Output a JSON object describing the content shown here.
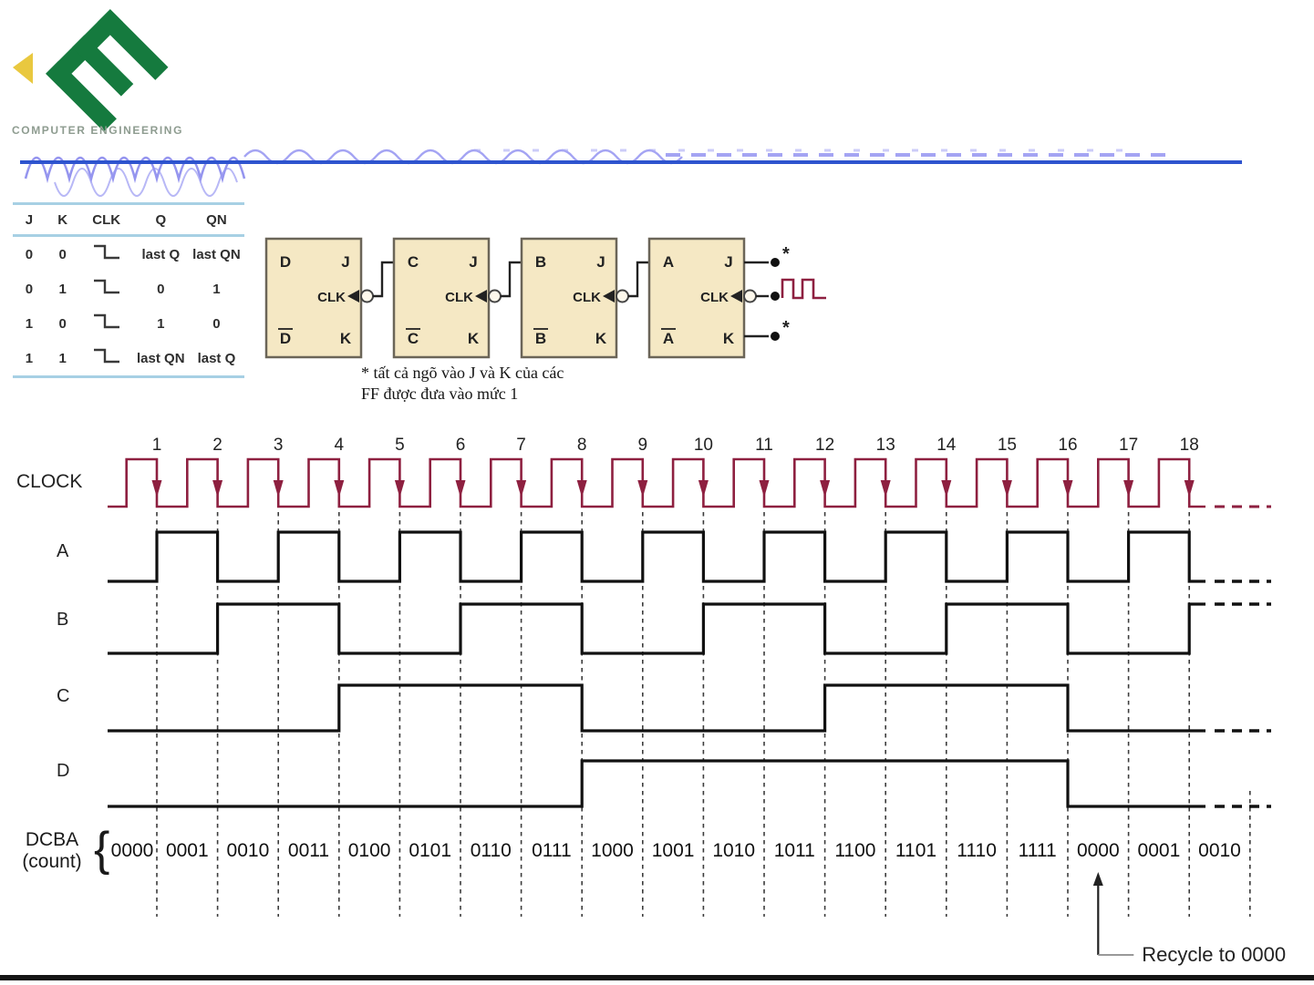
{
  "page": {
    "bg": "#ffffff",
    "footer_bar_color": "#151515",
    "rule_color": "#2e54ce"
  },
  "logo": {
    "org_text": "COMPUTER ENGINEERING",
    "green": "#157a3e",
    "yellow": "#e9c83f"
  },
  "truth_table": {
    "headers": [
      "J",
      "K",
      "CLK",
      "Q",
      "QN"
    ],
    "rows": [
      {
        "j": "0",
        "k": "0",
        "clk": "falling-edge",
        "q": "last Q",
        "qn": "last QN"
      },
      {
        "j": "0",
        "k": "1",
        "clk": "falling-edge",
        "q": "0",
        "qn": "1"
      },
      {
        "j": "1",
        "k": "0",
        "clk": "falling-edge",
        "q": "1",
        "qn": "0"
      },
      {
        "j": "1",
        "k": "1",
        "clk": "falling-edge",
        "q": "last QN",
        "qn": "last Q"
      }
    ],
    "rule_color": "#a7d0e4"
  },
  "circuit": {
    "block_fill": "#f5e8c4",
    "block_stroke": "#6b6558",
    "flip_flops": [
      {
        "q": "D",
        "qbar": "D",
        "j": "J",
        "k": "K",
        "clk": "CLK"
      },
      {
        "q": "C",
        "qbar": "C",
        "j": "J",
        "k": "K",
        "clk": "CLK"
      },
      {
        "q": "B",
        "qbar": "B",
        "j": "J",
        "k": "K",
        "clk": "CLK"
      },
      {
        "q": "A",
        "qbar": "A",
        "j": "J",
        "k": "K",
        "clk": "CLK"
      }
    ],
    "star": "*",
    "pulse_color": "#8e2040",
    "note_line1": "* tất cả ngõ vào J và K của các",
    "note_line2": "FF được đưa vào mức 1"
  },
  "timing": {
    "clock_label": "CLOCK",
    "clock_color": "#8e2040",
    "signal_color": "#111111",
    "edge_numbers": [
      "1",
      "2",
      "3",
      "4",
      "5",
      "6",
      "7",
      "8",
      "9",
      "10",
      "11",
      "12",
      "13",
      "14",
      "15",
      "16",
      "17",
      "18"
    ],
    "signals": [
      {
        "label": "A",
        "toggle_edges": [
          1,
          2,
          3,
          4,
          5,
          6,
          7,
          8,
          9,
          10,
          11,
          12,
          13,
          14,
          15,
          16,
          17,
          18
        ]
      },
      {
        "label": "B",
        "toggle_edges": [
          2,
          4,
          6,
          8,
          10,
          12,
          14,
          16,
          18
        ]
      },
      {
        "label": "C",
        "toggle_edges": [
          4,
          8,
          12,
          16
        ]
      },
      {
        "label": "D",
        "toggle_edges": [
          8,
          16
        ]
      }
    ],
    "count_label_line1": "DCBA",
    "count_label_line2": "(count)",
    "count_brace": "{",
    "counts": [
      "0000",
      "0001",
      "0010",
      "0011",
      "0100",
      "0101",
      "0110",
      "0111",
      "1000",
      "1001",
      "1010",
      "1011",
      "1100",
      "1101",
      "1110",
      "1111",
      "0000",
      "0001",
      "0010"
    ],
    "recycle_label": "Recycle to 0000"
  }
}
